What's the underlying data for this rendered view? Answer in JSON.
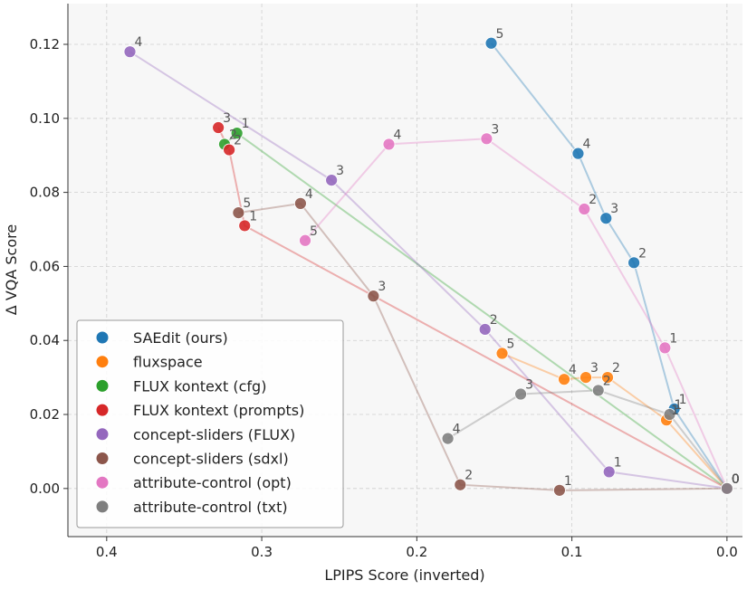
{
  "chart_data": {
    "type": "scatter",
    "title": "",
    "xlabel": "LPIPS Score (inverted)",
    "ylabel": "Δ VQA Score",
    "xlim": [
      0.425,
      -0.01
    ],
    "ylim": [
      -0.013,
      0.131
    ],
    "x_inverted": true,
    "grid": true,
    "legend_position": "lower-left",
    "xticks": [
      {
        "value": 0.4,
        "label": "0.4"
      },
      {
        "value": 0.3,
        "label": "0.3"
      },
      {
        "value": 0.2,
        "label": "0.2"
      },
      {
        "value": 0.1,
        "label": "0.1"
      },
      {
        "value": 0.0,
        "label": "0.0"
      }
    ],
    "yticks": [
      {
        "value": 0.0,
        "label": "0.00"
      },
      {
        "value": 0.02,
        "label": "0.02"
      },
      {
        "value": 0.04,
        "label": "0.04"
      },
      {
        "value": 0.06,
        "label": "0.06"
      },
      {
        "value": 0.08,
        "label": "0.08"
      },
      {
        "value": 0.1,
        "label": "0.10"
      },
      {
        "value": 0.12,
        "label": "0.12"
      }
    ],
    "series": [
      {
        "name": "SAEdit (ours)",
        "color": "#1f77b4",
        "points": [
          {
            "label": "0",
            "x": 0.0,
            "y": 0.0
          },
          {
            "label": "1",
            "x": 0.034,
            "y": 0.0215
          },
          {
            "label": "2",
            "x": 0.06,
            "y": 0.061
          },
          {
            "label": "3",
            "x": 0.078,
            "y": 0.073
          },
          {
            "label": "4",
            "x": 0.096,
            "y": 0.0905
          },
          {
            "label": "5",
            "x": 0.152,
            "y": 0.1203
          }
        ]
      },
      {
        "name": "fluxspace",
        "color": "#ff7f0e",
        "points": [
          {
            "label": "0",
            "x": 0.0,
            "y": 0.0
          },
          {
            "label": "1",
            "x": 0.039,
            "y": 0.0185
          },
          {
            "label": "2",
            "x": 0.077,
            "y": 0.03
          },
          {
            "label": "3",
            "x": 0.091,
            "y": 0.03
          },
          {
            "label": "4",
            "x": 0.105,
            "y": 0.0295
          },
          {
            "label": "5",
            "x": 0.145,
            "y": 0.0365
          }
        ]
      },
      {
        "name": "FLUX kontext (cfg)",
        "color": "#2ca02c",
        "points": [
          {
            "label": "0",
            "x": 0.0,
            "y": 0.0
          },
          {
            "label": "1",
            "x": 0.316,
            "y": 0.096
          },
          {
            "label": "2",
            "x": 0.324,
            "y": 0.093
          }
        ]
      },
      {
        "name": "FLUX kontext (prompts)",
        "color": "#d62728",
        "points": [
          {
            "label": "0",
            "x": 0.0,
            "y": 0.0
          },
          {
            "label": "1",
            "x": 0.311,
            "y": 0.071
          },
          {
            "label": "2",
            "x": 0.321,
            "y": 0.0915
          },
          {
            "label": "3",
            "x": 0.328,
            "y": 0.0975
          }
        ]
      },
      {
        "name": "concept-sliders (FLUX)",
        "color": "#9467bd",
        "points": [
          {
            "label": "0",
            "x": 0.0,
            "y": 0.0
          },
          {
            "label": "1",
            "x": 0.076,
            "y": 0.0045
          },
          {
            "label": "2",
            "x": 0.156,
            "y": 0.043
          },
          {
            "label": "3",
            "x": 0.255,
            "y": 0.0833
          },
          {
            "label": "4",
            "x": 0.385,
            "y": 0.118
          }
        ]
      },
      {
        "name": "concept-sliders (sdxl)",
        "color": "#8c564b",
        "points": [
          {
            "label": "0",
            "x": 0.0,
            "y": 0.0
          },
          {
            "label": "1",
            "x": 0.108,
            "y": -0.0005
          },
          {
            "label": "2",
            "x": 0.172,
            "y": 0.001
          },
          {
            "label": "3",
            "x": 0.228,
            "y": 0.052
          },
          {
            "label": "4",
            "x": 0.275,
            "y": 0.077
          },
          {
            "label": "5",
            "x": 0.315,
            "y": 0.0745
          }
        ]
      },
      {
        "name": "attribute-control (opt)",
        "color": "#e377c2",
        "points": [
          {
            "label": "0",
            "x": 0.0,
            "y": 0.0
          },
          {
            "label": "1",
            "x": 0.04,
            "y": 0.038
          },
          {
            "label": "2",
            "x": 0.092,
            "y": 0.0755
          },
          {
            "label": "3",
            "x": 0.155,
            "y": 0.0945
          },
          {
            "label": "4",
            "x": 0.218,
            "y": 0.093
          },
          {
            "label": "5",
            "x": 0.272,
            "y": 0.067
          }
        ]
      },
      {
        "name": "attribute-control (txt)",
        "color": "#7f7f7f",
        "points": [
          {
            "label": "0",
            "x": 0.0,
            "y": 0.0
          },
          {
            "label": "1",
            "x": 0.037,
            "y": 0.02
          },
          {
            "label": "2",
            "x": 0.083,
            "y": 0.0265
          },
          {
            "label": "3",
            "x": 0.133,
            "y": 0.0255
          },
          {
            "label": "4",
            "x": 0.18,
            "y": 0.0135
          }
        ]
      }
    ]
  }
}
